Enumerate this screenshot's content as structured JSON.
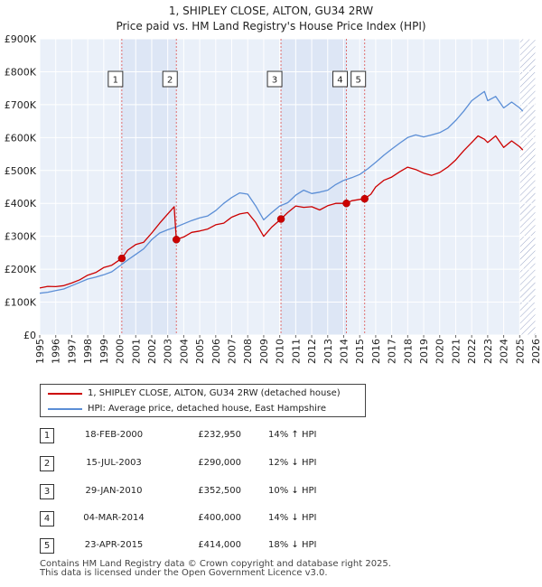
{
  "chart_data": {
    "type": "line",
    "title": "1, SHIPLEY CLOSE, ALTON, GU34 2RW",
    "subtitle": "Price paid vs. HM Land Registry's House Price Index (HPI)",
    "xlabel": "",
    "ylabel": "",
    "xlim": [
      1995,
      2026
    ],
    "ylim": [
      0,
      900000
    ],
    "y_ticks": [
      {
        "value": 0,
        "label": "£0"
      },
      {
        "value": 100000,
        "label": "£100K"
      },
      {
        "value": 200000,
        "label": "£200K"
      },
      {
        "value": 300000,
        "label": "£300K"
      },
      {
        "value": 400000,
        "label": "£400K"
      },
      {
        "value": 500000,
        "label": "£500K"
      },
      {
        "value": 600000,
        "label": "£600K"
      },
      {
        "value": 700000,
        "label": "£700K"
      },
      {
        "value": 800000,
        "label": "£800K"
      },
      {
        "value": 900000,
        "label": "£900K"
      }
    ],
    "x_ticks": [
      "1995",
      "1996",
      "1997",
      "1998",
      "1999",
      "2000",
      "2001",
      "2002",
      "2003",
      "2004",
      "2005",
      "2006",
      "2007",
      "2008",
      "2009",
      "2010",
      "2011",
      "2012",
      "2013",
      "2014",
      "2015",
      "2016",
      "2017",
      "2018",
      "2019",
      "2020",
      "2021",
      "2022",
      "2023",
      "2024",
      "2025",
      "2026"
    ],
    "grid": true,
    "series": [
      {
        "name": "1, SHIPLEY CLOSE, ALTON, GU34 2RW (detached house)",
        "color": "#cc0000",
        "x": [
          1995.0,
          1995.5,
          1996.0,
          1996.5,
          1997.0,
          1997.5,
          1998.0,
          1998.5,
          1999.0,
          1999.5,
          2000.13,
          2000.5,
          2001.0,
          2001.5,
          2002.0,
          2002.5,
          2003.0,
          2003.4,
          2003.54,
          2004.0,
          2004.5,
          2005.0,
          2005.5,
          2006.0,
          2006.5,
          2007.0,
          2007.5,
          2008.0,
          2008.5,
          2009.0,
          2009.5,
          2010.08,
          2010.5,
          2011.0,
          2011.5,
          2012.0,
          2012.5,
          2013.0,
          2013.5,
          2014.17,
          2014.5,
          2015.0,
          2015.31,
          2015.7,
          2016.0,
          2016.5,
          2017.0,
          2017.5,
          2018.0,
          2018.5,
          2019.0,
          2019.5,
          2020.0,
          2020.5,
          2021.0,
          2021.5,
          2022.0,
          2022.4,
          2022.8,
          2023.0,
          2023.5,
          2024.0,
          2024.5,
          2025.0,
          2025.2
        ],
        "y": [
          143000,
          148000,
          147000,
          150000,
          158000,
          168000,
          182000,
          190000,
          205000,
          212000,
          232950,
          258000,
          275000,
          282000,
          310000,
          340000,
          368000,
          390000,
          290000,
          298000,
          312000,
          316000,
          322000,
          335000,
          340000,
          358000,
          368000,
          372000,
          342000,
          300000,
          328000,
          352500,
          372000,
          392000,
          388000,
          390000,
          380000,
          393000,
          400000,
          400000,
          408000,
          412000,
          414000,
          428000,
          450000,
          470000,
          480000,
          496000,
          510000,
          503000,
          492000,
          485000,
          494000,
          510000,
          532000,
          560000,
          585000,
          605000,
          595000,
          585000,
          605000,
          570000,
          590000,
          572000,
          562000
        ]
      },
      {
        "name": "HPI: Average price, detached house, East Hampshire",
        "color": "#5b8ed6",
        "x": [
          1995.0,
          1995.5,
          1996.0,
          1996.5,
          1997.0,
          1997.5,
          1998.0,
          1998.5,
          1999.0,
          1999.5,
          2000.0,
          2000.5,
          2001.0,
          2001.5,
          2002.0,
          2002.5,
          2003.0,
          2003.5,
          2004.0,
          2004.5,
          2005.0,
          2005.5,
          2006.0,
          2006.5,
          2007.0,
          2007.5,
          2008.0,
          2008.5,
          2009.0,
          2009.5,
          2010.0,
          2010.5,
          2011.0,
          2011.5,
          2012.0,
          2012.5,
          2013.0,
          2013.5,
          2014.0,
          2014.5,
          2015.0,
          2015.5,
          2016.0,
          2016.5,
          2017.0,
          2017.5,
          2018.0,
          2018.5,
          2019.0,
          2019.5,
          2020.0,
          2020.5,
          2021.0,
          2021.5,
          2022.0,
          2022.5,
          2022.8,
          2023.0,
          2023.5,
          2024.0,
          2024.5,
          2025.0,
          2025.2
        ],
        "y": [
          127000,
          130000,
          135000,
          140000,
          150000,
          160000,
          170000,
          176000,
          183000,
          192000,
          210000,
          228000,
          245000,
          262000,
          290000,
          310000,
          320000,
          328000,
          338000,
          348000,
          356000,
          362000,
          378000,
          400000,
          418000,
          432000,
          428000,
          392000,
          350000,
          372000,
          392000,
          402000,
          425000,
          440000,
          430000,
          434000,
          440000,
          457000,
          470000,
          478000,
          488000,
          505000,
          525000,
          546000,
          565000,
          583000,
          600000,
          608000,
          602000,
          608000,
          615000,
          628000,
          652000,
          680000,
          712000,
          730000,
          740000,
          712000,
          725000,
          690000,
          708000,
          690000,
          680000
        ]
      }
    ],
    "sales": [
      {
        "id": "1",
        "x": 2000.13,
        "y": 232950
      },
      {
        "id": "2",
        "x": 2003.54,
        "y": 290000
      },
      {
        "id": "3",
        "x": 2010.08,
        "y": 352500
      },
      {
        "id": "4",
        "x": 2014.17,
        "y": 400000
      },
      {
        "id": "5",
        "x": 2015.31,
        "y": 414000
      }
    ],
    "highlight_bands": [
      {
        "from": 2000.13,
        "to": 2003.54
      },
      {
        "from": 2010.08,
        "to": 2014.17
      },
      {
        "from": 2015.31,
        "to": 2015.31
      },
      {
        "from": 2025.0,
        "to": 2026.0,
        "style": "hatched"
      }
    ]
  },
  "legend": {
    "property_label": "1, SHIPLEY CLOSE, ALTON, GU34 2RW (detached house)",
    "hpi_label": "HPI: Average price, detached house, East Hampshire",
    "property_color": "#cc0000",
    "hpi_color": "#5b8ed6"
  },
  "sales_table": [
    {
      "num": "1",
      "date": "18-FEB-2000",
      "price": "£232,950",
      "hpi": "14% ↑ HPI"
    },
    {
      "num": "2",
      "date": "15-JUL-2003",
      "price": "£290,000",
      "hpi": "12% ↓ HPI"
    },
    {
      "num": "3",
      "date": "29-JAN-2010",
      "price": "£352,500",
      "hpi": "10% ↓ HPI"
    },
    {
      "num": "4",
      "date": "04-MAR-2014",
      "price": "£400,000",
      "hpi": "14% ↓ HPI"
    },
    {
      "num": "5",
      "date": "23-APR-2015",
      "price": "£414,000",
      "hpi": "18% ↓ HPI"
    }
  ],
  "footer": {
    "line1": "Contains HM Land Registry data © Crown copyright and database right 2025.",
    "line2": "This data is licensed under the Open Government Licence v3.0."
  }
}
